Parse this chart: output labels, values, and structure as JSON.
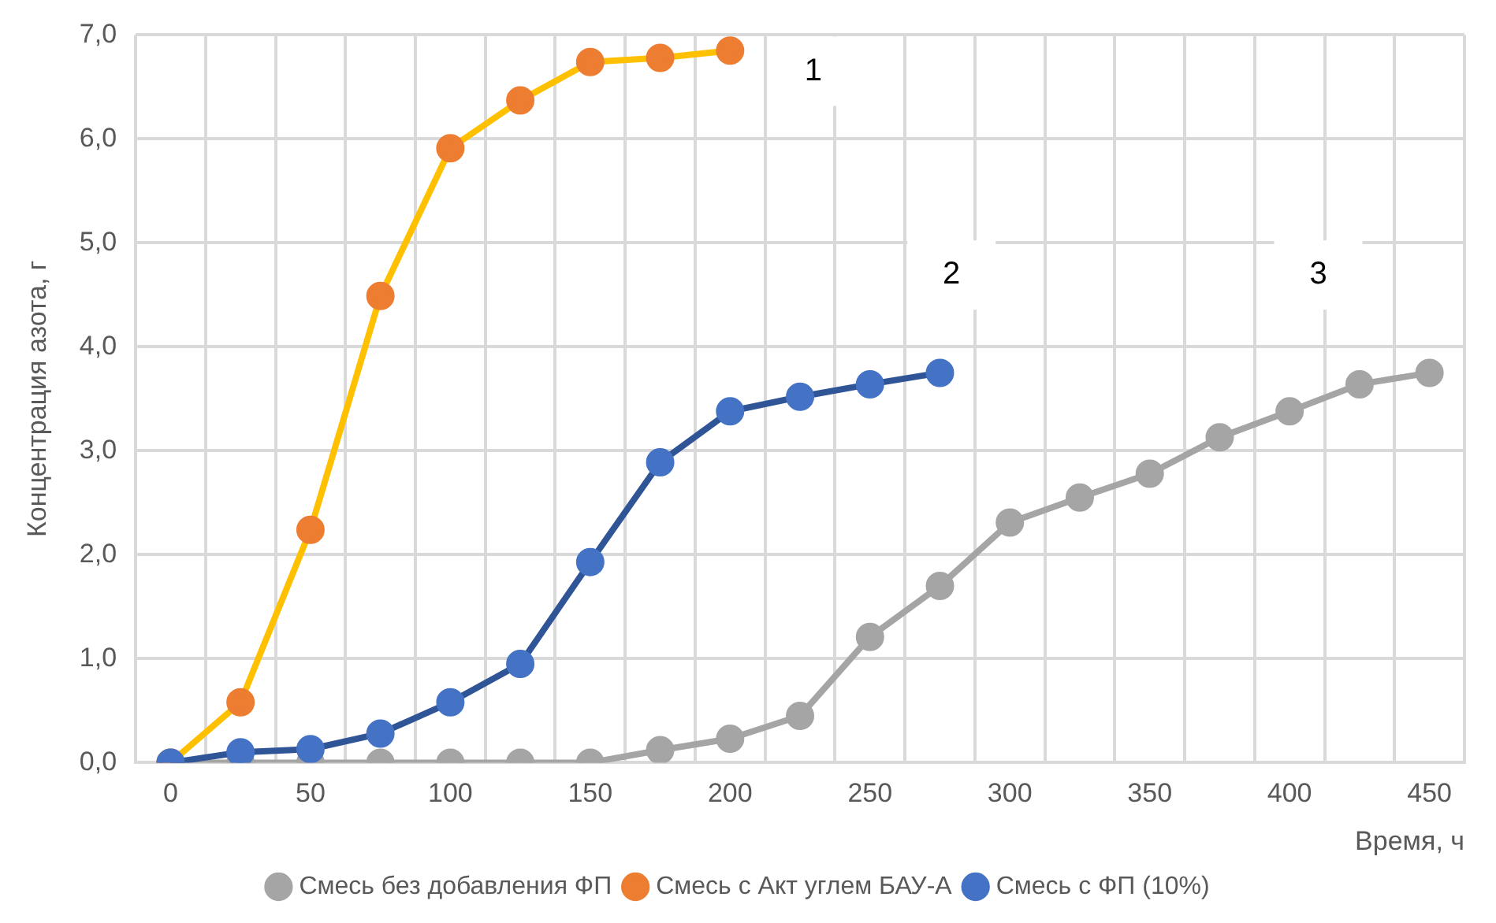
{
  "chart_data": {
    "type": "line",
    "xlabel": "Время, ч",
    "ylabel": "Концентрация азота, г",
    "categories": [
      "0",
      null,
      "50",
      null,
      "100",
      null,
      "150",
      null,
      "200",
      null,
      "250",
      null,
      "300",
      null,
      "350",
      null,
      "400",
      null,
      "450"
    ],
    "series": [
      {
        "name": "Смесь без добавления ФП",
        "color": "#a5a5a5",
        "values": [
          0,
          0,
          0,
          0,
          0,
          0,
          0,
          0.12,
          0.23,
          0.45,
          1.21,
          1.7,
          2.31,
          2.55,
          2.78,
          3.13,
          3.38,
          3.64,
          3.75
        ]
      },
      {
        "name": "Смесь с Акт углем БАУ-А",
        "color": "#ffc000",
        "colors": [
          "#ed7d31",
          "#ed7d31",
          "#ed7d31",
          "#ed7d31",
          "#ed7d31",
          "#ed7d31",
          "#ed7d31",
          "#ed7d31",
          "#ed7d31",
          "#ed7d31",
          "#ed7d31",
          "#ed7d31",
          "#ed7d31",
          "#ed7d31",
          "#ed7d31",
          "#ed7d31",
          "#ed7d31",
          "#ed7d31",
          "#ed7d31"
        ],
        "values": [
          0,
          0.58,
          2.24,
          4.49,
          5.91,
          6.37,
          6.74,
          6.78,
          6.85,
          null,
          null,
          null,
          null,
          null,
          null,
          null,
          null,
          null,
          null
        ]
      },
      {
        "name": "Смесь с ФП (10%)",
        "color": "#2f5597",
        "colors": [
          "#4472c4",
          "#4472c4",
          "#4472c4",
          "#4472c4",
          "#4472c4",
          "#4472c4",
          "#4472c4",
          "#4472c4",
          "#4472c4",
          "#4472c4",
          "#4472c4",
          "#4472c4",
          "#4472c4",
          "#4472c4",
          "#4472c4",
          "#4472c4",
          "#4472c4",
          "#4472c4",
          "#4472c4"
        ],
        "values": [
          0,
          0.1,
          0.13,
          0.28,
          0.58,
          0.95,
          1.93,
          2.89,
          3.38,
          3.52,
          3.64,
          3.75,
          null,
          null,
          null,
          null,
          null,
          null,
          null
        ]
      }
    ],
    "ylim": [
      0,
      7
    ],
    "yticks": [
      {
        "value": 0,
        "label": "0,0"
      },
      {
        "value": 1,
        "label": "1,0"
      },
      {
        "value": 2,
        "label": "2,0"
      },
      {
        "value": 3,
        "label": "3,0"
      },
      {
        "value": 4,
        "label": "4,0"
      },
      {
        "value": 5,
        "label": "5,0"
      },
      {
        "value": 6,
        "label": "6,0"
      },
      {
        "value": 7,
        "label": "7,0"
      }
    ],
    "annotations": [
      "1",
      "2",
      "3"
    ],
    "grid": true,
    "legend": "bottom",
    "marker": "circle",
    "line_style": "solid"
  }
}
